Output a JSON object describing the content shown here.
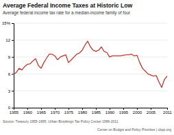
{
  "chart_data": {
    "type": "line",
    "title": "Average Federal Income Taxes at Historic Low",
    "subtitle": "Average federal income tax rate for a median-income family of four",
    "annotations": [
      "Source: Treasury 1955-1995, Urban Brookings Tax Policy Center 1996-2011",
      "Center on Budget and Policy Priorities | cbpp.org"
    ],
    "x": [
      1955,
      1956,
      1957,
      1958,
      1959,
      1960,
      1961,
      1962,
      1963,
      1964,
      1965,
      1966,
      1967,
      1968,
      1969,
      1970,
      1971,
      1972,
      1973,
      1974,
      1975,
      1976,
      1977,
      1978,
      1979,
      1980,
      1981,
      1982,
      1983,
      1984,
      1985,
      1986,
      1987,
      1988,
      1989,
      1990,
      1991,
      1992,
      1993,
      1994,
      1995,
      1996,
      1997,
      1998,
      1999,
      2000,
      2001,
      2002,
      2003,
      2004,
      2005,
      2006,
      2007,
      2008,
      2009,
      2010,
      2011
    ],
    "values": [
      5.9,
      6.3,
      7.0,
      6.7,
      7.3,
      7.7,
      7.8,
      8.3,
      8.7,
      7.5,
      7.0,
      8.0,
      8.8,
      9.5,
      9.5,
      9.2,
      8.5,
      9.0,
      9.2,
      9.4,
      8.0,
      8.5,
      9.0,
      9.5,
      9.7,
      10.2,
      11.1,
      11.8,
      10.8,
      10.2,
      10.0,
      10.2,
      10.8,
      10.0,
      9.8,
      9.0,
      9.2,
      9.2,
      9.2,
      9.2,
      9.3,
      9.4,
      9.4,
      9.5,
      9.2,
      9.3,
      8.0,
      7.0,
      6.5,
      6.0,
      5.8,
      5.6,
      5.7,
      4.6,
      3.6,
      5.0,
      5.6
    ],
    "color": "#c0392b",
    "xlim": [
      1955,
      2011
    ],
    "xticks": [
      1955,
      1960,
      1965,
      1970,
      1975,
      1980,
      1985,
      1990,
      1995,
      2000,
      2005,
      2011
    ],
    "ylim": [
      0,
      15
    ],
    "yticks": [
      0,
      3,
      6,
      9,
      12,
      {
        "value": 15,
        "label": "15%"
      }
    ],
    "grid": true
  }
}
